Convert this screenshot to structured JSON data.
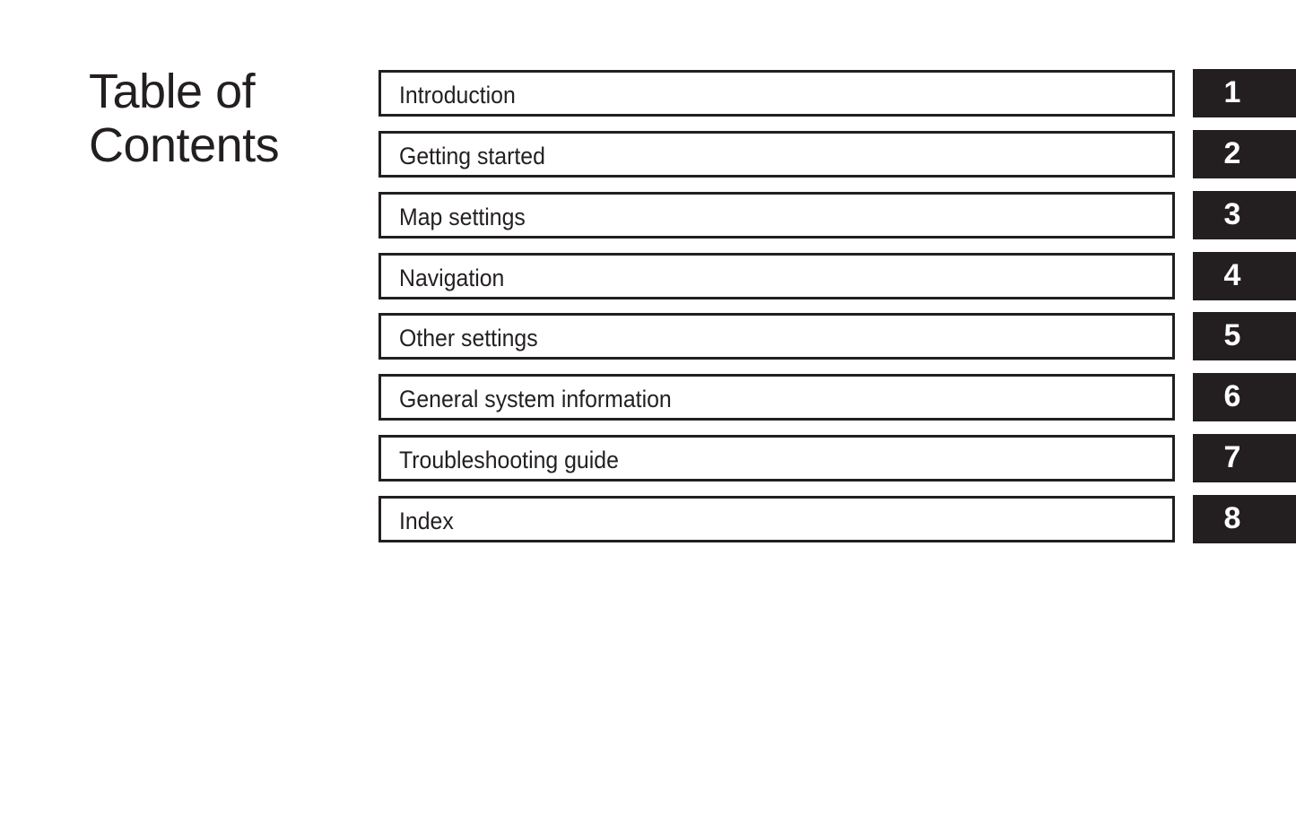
{
  "page": {
    "title_line1": "Table of",
    "title_line2": "Contents"
  },
  "colors": {
    "ink": "#231f20",
    "background": "#ffffff"
  },
  "chapters": [
    {
      "label": "Introduction",
      "number": "1"
    },
    {
      "label": "Getting started",
      "number": "2"
    },
    {
      "label": "Map settings",
      "number": "3"
    },
    {
      "label": "Navigation",
      "number": "4"
    },
    {
      "label": "Other settings",
      "number": "5"
    },
    {
      "label": "General system information",
      "number": "6"
    },
    {
      "label": "Troubleshooting guide",
      "number": "7"
    },
    {
      "label": "Index",
      "number": "8"
    }
  ]
}
